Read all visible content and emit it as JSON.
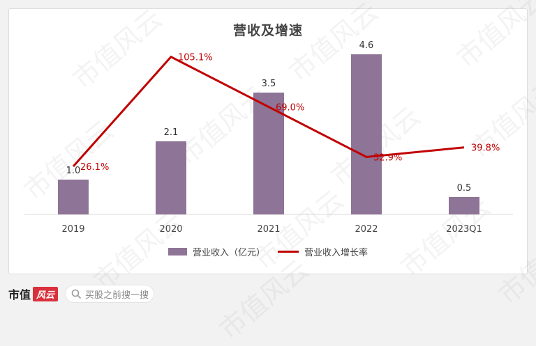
{
  "colors": {
    "bar": "#8e7496",
    "line": "#c00000",
    "value_label": "#333333",
    "rate_label": "#c00000",
    "axis_text": "#444444",
    "brand_badge": "#d9313c"
  },
  "watermark_text": "市值风云",
  "chart_data": {
    "type": "bar",
    "title": "营收及增速",
    "categories": [
      "2019",
      "2020",
      "2021",
      "2022",
      "2023Q1"
    ],
    "series": [
      {
        "name": "营业收入（亿元）",
        "type": "bar",
        "values": [
          1.0,
          2.1,
          3.5,
          4.6,
          0.5
        ],
        "labels": [
          "1.0",
          "2.1",
          "3.5",
          "4.6",
          "0.5"
        ],
        "axis": "left"
      },
      {
        "name": "营业收入增长率",
        "type": "line",
        "values": [
          26.1,
          105.1,
          69.0,
          32.9,
          39.8
        ],
        "labels": [
          "26.1%",
          "105.1%",
          "69.0%",
          "32.9%",
          "39.8%"
        ],
        "unit": "%",
        "axis": "right"
      }
    ],
    "bar_axis_range": [
      0,
      5.0
    ],
    "line_axis_range": [
      0,
      120
    ],
    "grid": false,
    "legend": "bottom"
  },
  "footer": {
    "brand_name": "市值",
    "brand_badge": "风云",
    "search_placeholder": "买股之前搜一搜"
  }
}
